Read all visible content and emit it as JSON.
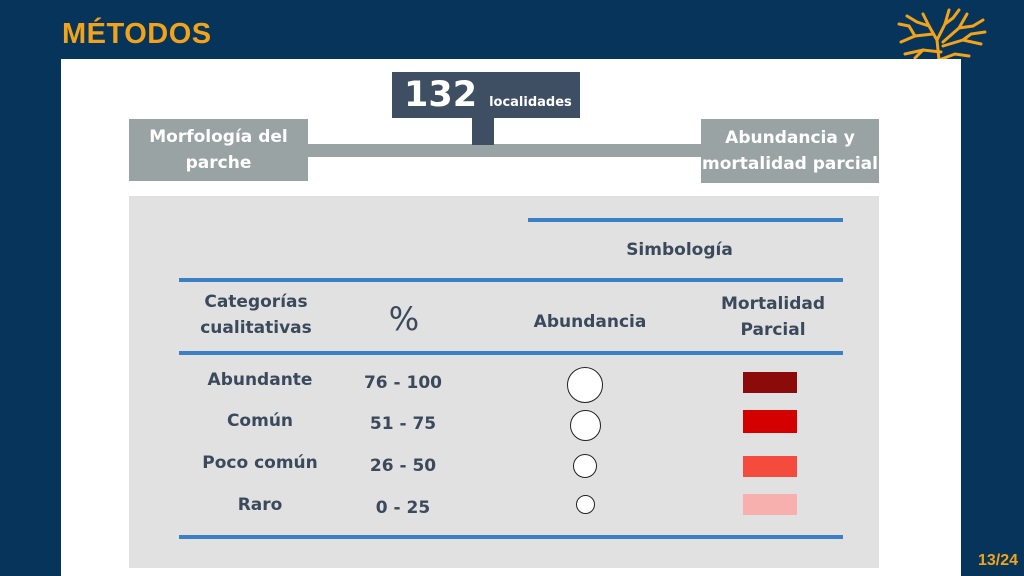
{
  "header": {
    "title": "MÉTODOS",
    "logo_icon": "coral-icon"
  },
  "footer": {
    "page": "13/24"
  },
  "diagram": {
    "count_value": "132",
    "count_label": "localidades",
    "left_box": "Morfología del parche",
    "right_box": "Abundancia y mortalidad parcial"
  },
  "table": {
    "simbologia": "Simbología",
    "col_categories": "Categorías cualitativas",
    "col_percent": "%",
    "col_abundance": "Abundancia",
    "col_mortality": "Mortalidad Parcial",
    "rows": [
      {
        "category": "Abundante",
        "percent": "76 - 100",
        "abundance_symbol": "large-circle",
        "mortality_color": "#8b0a0a"
      },
      {
        "category": "Común",
        "percent": "51 - 75",
        "abundance_symbol": "medium-large-circle",
        "mortality_color": "#d40000"
      },
      {
        "category": "Poco común",
        "percent": "26 - 50",
        "abundance_symbol": "medium-circle",
        "mortality_color": "#f44b3e"
      },
      {
        "category": "Raro",
        "percent": "0 - 25",
        "abundance_symbol": "small-circle",
        "mortality_color": "#f7b0ae"
      }
    ]
  },
  "colors": {
    "background": "#06345a",
    "accent": "#f2a31a",
    "rule": "#3b7fc4",
    "box_grey": "#9aa3a3",
    "count_box": "#3f4f63"
  }
}
